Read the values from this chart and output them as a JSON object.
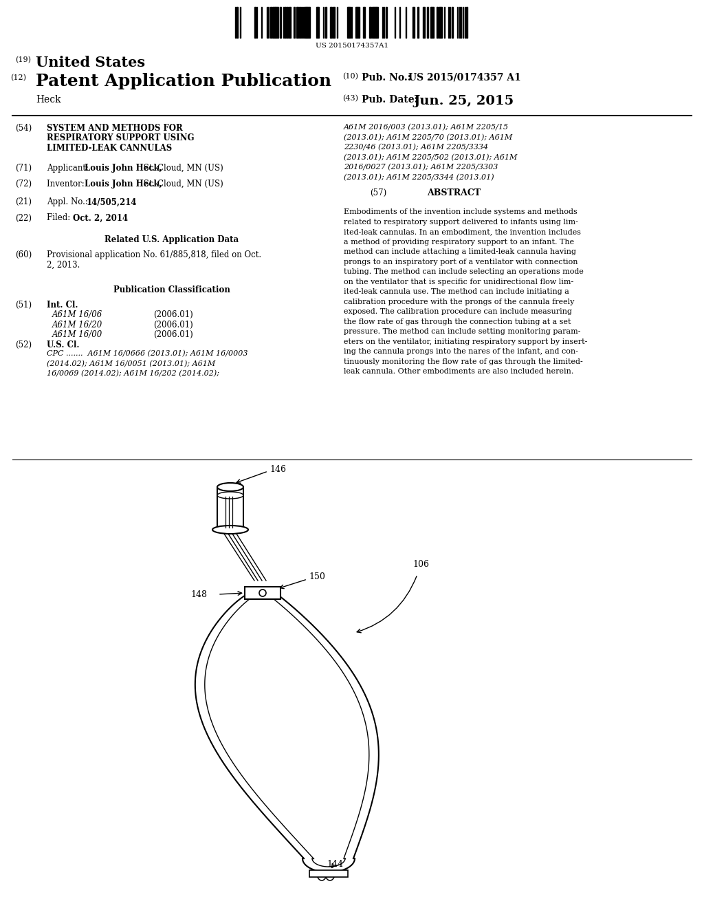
{
  "background_color": "#ffffff",
  "barcode_text": "US 20150174357A1",
  "header_19_label": "(19)",
  "header_19_text": "United States",
  "header_12_label": "(12)",
  "header_12_text": "Patent Application Publication",
  "header_10_label": "(10)",
  "header_10_text": "Pub. No.:",
  "header_10_pubno": "US 2015/0174357 A1",
  "header_43_label": "(43)",
  "header_43_text": "Pub. Date:",
  "header_43_date": "Jun. 25, 2015",
  "inventor_name": "Heck",
  "field54_label": "(54)",
  "field54_title": "SYSTEM AND METHODS FOR\nRESPIRATORY SUPPORT USING\nLIMITED-LEAK CANNULAS",
  "field71_label": "(71)",
  "field71_text_plain": "Applicant:",
  "field71_text_bold": "Louis John Heck,",
  "field71_text_rest": " St. Cloud, MN (US)",
  "field72_label": "(72)",
  "field72_text_plain": "Inventor:",
  "field72_text_bold": "Louis John Heck,",
  "field72_text_rest": " St. Cloud, MN (US)",
  "field21_label": "(21)",
  "field21_text_plain": "Appl. No.:",
  "field21_text_bold": "14/505,214",
  "field22_label": "(22)",
  "field22_text_plain": "Filed:",
  "field22_text_bold": "Oct. 2, 2014",
  "related_title": "Related U.S. Application Data",
  "field60_label": "(60)",
  "field60_text": "Provisional application No. 61/885,818, filed on Oct.\n2, 2013.",
  "pubclass_title": "Publication Classification",
  "field51_label": "(51)",
  "field51_entries": [
    [
      "A61M 16/06",
      "(2006.01)"
    ],
    [
      "A61M 16/20",
      "(2006.01)"
    ],
    [
      "A61M 16/00",
      "(2006.01)"
    ]
  ],
  "field52_label": "(52)",
  "field52_cpc_line1": "CPC .......  A61M 16/0666 (2013.01); A61M 16/0003",
  "field52_cpc_line2": "(2014.02); A61M 16/0051 (2013.01); A61M",
  "field52_cpc_line3": "16/0069 (2014.02); A61M 16/202 (2014.02);",
  "right_cpc_lines": [
    "A61M 2016/003 (2013.01); A61M 2205/15",
    "(2013.01); A61M 2205/70 (2013.01); A61M",
    "2230/46 (2013.01); A61M 2205/3334",
    "(2013.01); A61M 2205/502 (2013.01); A61M",
    "2016/0027 (2013.01); A61M 2205/3303",
    "(2013.01); A61M 2205/3344 (2013.01)"
  ],
  "field57_label": "(57)",
  "field57_title": "ABSTRACT",
  "abstract_lines": [
    "Embodiments of the invention include systems and methods",
    "related to respiratory support delivered to infants using lim-",
    "ited-leak cannulas. In an embodiment, the invention includes",
    "a method of providing respiratory support to an infant. The",
    "method can include attaching a limited-leak cannula having",
    "prongs to an inspiratory port of a ventilator with connection",
    "tubing. The method can include selecting an operations mode",
    "on the ventilator that is specific for unidirectional flow lim-",
    "ited-leak cannula use. The method can include initiating a",
    "calibration procedure with the prongs of the cannula freely",
    "exposed. The calibration procedure can include measuring",
    "the flow rate of gas through the connection tubing at a set",
    "pressure. The method can include setting monitoring param-",
    "eters on the ventilator, initiating respiratory support by insert-",
    "ing the cannula prongs into the nares of the infant, and con-",
    "tinuously monitoring the flow rate of gas through the limited-",
    "leak cannula. Other embodiments are also included herein."
  ],
  "label_146": "146",
  "label_150": "150",
  "label_148": "148",
  "label_106": "106",
  "label_144": "144"
}
